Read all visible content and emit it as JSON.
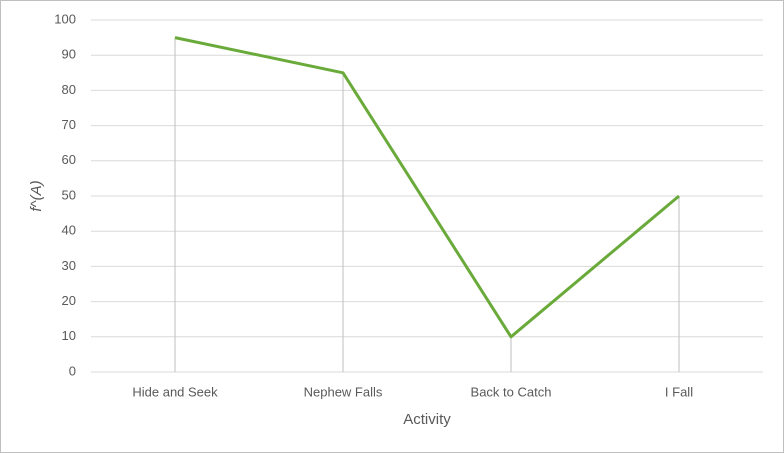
{
  "chart_data": {
    "type": "line",
    "x_label": "Activity",
    "y_label": "f^(A)",
    "categories": [
      "Hide and Seek",
      "Nephew Falls",
      "Back to Catch",
      "I Fall"
    ],
    "values": [
      95,
      85,
      10,
      50
    ],
    "color": "#6aaa3a",
    "ylim": [
      0,
      100
    ],
    "yticks": [
      0,
      10,
      20,
      30,
      40,
      50,
      60,
      70,
      80,
      90,
      100
    ],
    "grid": true,
    "drop_lines": true
  }
}
